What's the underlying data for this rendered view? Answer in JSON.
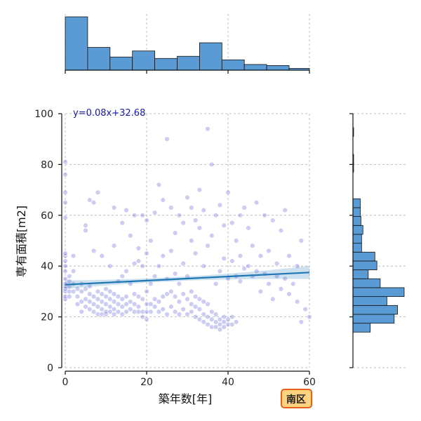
{
  "chart_data": {
    "type": "scatter",
    "xlabel": "築年数[年]",
    "ylabel": "専有面積[m2]",
    "xlim": [
      0,
      60
    ],
    "ylim": [
      0,
      100
    ],
    "xticks": [
      0,
      20,
      40,
      60
    ],
    "yticks": [
      0,
      20,
      40,
      60,
      80,
      100
    ],
    "grid": true,
    "regression": {
      "label": "y=0.08x+32.68",
      "slope": 0.08,
      "intercept": 32.68,
      "color": "#1f77b4"
    },
    "badge": {
      "label": "南区",
      "fill": "#ffd27f",
      "border": "#e8611a"
    },
    "point_color": "#5b5bd6",
    "hist_color": "#5b9bd5",
    "x_hist": {
      "bins": [
        0,
        5.5,
        11,
        16.5,
        22,
        27.5,
        33,
        38.5,
        44,
        49.5,
        55,
        60
      ],
      "counts": [
        150,
        64,
        37,
        54,
        33,
        39,
        77,
        29,
        16,
        13,
        5
      ]
    },
    "y_hist": {
      "bins": [
        14,
        17.5,
        21,
        24.5,
        28,
        31.5,
        35,
        38.5,
        42,
        45.5,
        49,
        52.5,
        56,
        59.5,
        63,
        66.5,
        70,
        73.5,
        77,
        80.5,
        84,
        87.5,
        91,
        94.5
      ],
      "counts": [
        26,
        62,
        67,
        51,
        77,
        41,
        23,
        36,
        33,
        13,
        13,
        15,
        12,
        11,
        11,
        0,
        0,
        0,
        1,
        1,
        0,
        0,
        1
      ]
    },
    "points": [
      [
        0,
        27
      ],
      [
        0,
        28
      ],
      [
        0,
        30
      ],
      [
        0,
        31
      ],
      [
        0,
        32
      ],
      [
        0,
        33
      ],
      [
        0,
        35
      ],
      [
        0,
        38
      ],
      [
        0,
        40
      ],
      [
        0,
        42
      ],
      [
        0,
        44
      ],
      [
        0,
        45
      ],
      [
        0,
        65
      ],
      [
        0,
        76
      ],
      [
        0,
        81
      ],
      [
        0,
        69
      ],
      [
        0,
        59
      ],
      [
        1,
        28
      ],
      [
        1,
        30
      ],
      [
        1,
        32
      ],
      [
        1,
        34
      ],
      [
        1,
        36
      ],
      [
        2,
        30
      ],
      [
        2,
        33
      ],
      [
        2,
        38
      ],
      [
        2,
        44
      ],
      [
        3,
        25
      ],
      [
        3,
        28
      ],
      [
        3,
        31
      ],
      [
        4,
        22
      ],
      [
        4,
        26
      ],
      [
        4,
        30
      ],
      [
        4,
        33
      ],
      [
        5,
        24
      ],
      [
        5,
        27
      ],
      [
        5,
        31
      ],
      [
        5,
        56
      ],
      [
        5,
        54
      ],
      [
        6,
        23
      ],
      [
        6,
        26
      ],
      [
        6,
        29
      ],
      [
        6,
        32
      ],
      [
        6,
        66
      ],
      [
        7,
        22
      ],
      [
        7,
        25
      ],
      [
        7,
        28
      ],
      [
        7,
        46
      ],
      [
        7,
        65
      ],
      [
        8,
        21
      ],
      [
        8,
        24
      ],
      [
        8,
        27
      ],
      [
        8,
        30
      ],
      [
        8,
        69
      ],
      [
        9,
        21
      ],
      [
        9,
        23
      ],
      [
        9,
        26
      ],
      [
        9,
        29
      ],
      [
        9,
        44
      ],
      [
        10,
        21
      ],
      [
        10,
        22
      ],
      [
        10,
        25
      ],
      [
        10,
        28
      ],
      [
        10,
        31
      ],
      [
        11,
        22
      ],
      [
        11,
        24
      ],
      [
        11,
        27
      ],
      [
        11,
        30
      ],
      [
        11,
        40
      ],
      [
        12,
        21
      ],
      [
        12,
        23
      ],
      [
        12,
        26
      ],
      [
        12,
        29
      ],
      [
        12,
        48
      ],
      [
        12,
        63
      ],
      [
        13,
        22
      ],
      [
        13,
        25
      ],
      [
        13,
        28
      ],
      [
        13,
        34
      ],
      [
        14,
        21
      ],
      [
        14,
        24
      ],
      [
        14,
        27
      ],
      [
        14,
        36
      ],
      [
        14,
        57
      ],
      [
        15,
        22
      ],
      [
        15,
        25
      ],
      [
        15,
        28
      ],
      [
        15,
        38
      ],
      [
        15,
        62
      ],
      [
        16,
        23
      ],
      [
        16,
        26
      ],
      [
        16,
        33
      ],
      [
        16,
        52
      ],
      [
        17,
        22
      ],
      [
        17,
        25
      ],
      [
        17,
        29
      ],
      [
        17,
        41
      ],
      [
        17,
        60
      ],
      [
        18,
        22
      ],
      [
        18,
        24
      ],
      [
        18,
        28
      ],
      [
        18,
        42
      ],
      [
        18,
        47
      ],
      [
        19,
        20
      ],
      [
        19,
        22
      ],
      [
        19,
        27
      ],
      [
        19,
        40
      ],
      [
        19,
        60
      ],
      [
        20,
        19
      ],
      [
        20,
        22
      ],
      [
        20,
        25
      ],
      [
        20,
        30
      ],
      [
        20,
        45
      ],
      [
        20,
        58
      ],
      [
        21,
        22
      ],
      [
        21,
        25
      ],
      [
        21,
        33
      ],
      [
        21,
        50
      ],
      [
        22,
        24
      ],
      [
        22,
        27
      ],
      [
        22,
        36
      ],
      [
        22,
        61
      ],
      [
        23,
        22
      ],
      [
        23,
        26
      ],
      [
        23,
        40
      ],
      [
        23,
        72
      ],
      [
        24,
        23
      ],
      [
        24,
        28
      ],
      [
        24,
        44
      ],
      [
        24,
        66
      ],
      [
        25,
        21
      ],
      [
        25,
        29
      ],
      [
        25,
        35
      ],
      [
        25,
        90
      ],
      [
        26,
        24
      ],
      [
        26,
        30
      ],
      [
        26,
        46
      ],
      [
        26,
        63
      ],
      [
        27,
        22
      ],
      [
        27,
        28
      ],
      [
        27,
        37
      ],
      [
        27,
        53
      ],
      [
        28,
        21
      ],
      [
        28,
        26
      ],
      [
        28,
        33
      ],
      [
        28,
        60
      ],
      [
        29,
        23
      ],
      [
        29,
        29
      ],
      [
        29,
        41
      ],
      [
        29,
        57
      ],
      [
        30,
        21
      ],
      [
        30,
        27
      ],
      [
        30,
        36
      ],
      [
        30,
        67
      ],
      [
        31,
        22
      ],
      [
        31,
        25
      ],
      [
        31,
        30
      ],
      [
        31,
        50
      ],
      [
        31,
        63
      ],
      [
        32,
        20
      ],
      [
        32,
        24
      ],
      [
        32,
        28
      ],
      [
        32,
        45
      ],
      [
        32,
        58
      ],
      [
        33,
        19
      ],
      [
        33,
        23
      ],
      [
        33,
        27
      ],
      [
        33,
        55
      ],
      [
        33,
        70
      ],
      [
        34,
        18
      ],
      [
        34,
        21
      ],
      [
        34,
        26
      ],
      [
        34,
        40
      ],
      [
        34,
        62
      ],
      [
        35,
        17
      ],
      [
        35,
        20
      ],
      [
        35,
        25
      ],
      [
        35,
        48
      ],
      [
        35,
        94
      ],
      [
        36,
        16
      ],
      [
        36,
        19
      ],
      [
        36,
        22
      ],
      [
        36,
        52
      ],
      [
        36,
        80
      ],
      [
        37,
        16
      ],
      [
        37,
        18
      ],
      [
        37,
        21
      ],
      [
        37,
        33
      ],
      [
        37,
        60
      ],
      [
        38,
        15
      ],
      [
        38,
        17
      ],
      [
        38,
        19
      ],
      [
        38,
        38
      ],
      [
        38,
        64
      ],
      [
        39,
        16
      ],
      [
        39,
        18
      ],
      [
        39,
        20
      ],
      [
        39,
        43
      ],
      [
        39,
        56
      ],
      [
        40,
        17
      ],
      [
        40,
        19
      ],
      [
        40,
        35
      ],
      [
        40,
        69
      ],
      [
        41,
        17
      ],
      [
        41,
        20
      ],
      [
        41,
        42
      ],
      [
        41,
        57
      ],
      [
        42,
        18
      ],
      [
        42,
        36
      ],
      [
        42,
        50
      ],
      [
        43,
        34
      ],
      [
        43,
        60
      ],
      [
        43,
        44
      ],
      [
        44,
        39
      ],
      [
        44,
        63
      ],
      [
        45,
        40
      ],
      [
        45,
        55
      ],
      [
        46,
        36
      ],
      [
        46,
        48
      ],
      [
        47,
        38
      ],
      [
        47,
        65
      ],
      [
        48,
        30
      ],
      [
        48,
        44
      ],
      [
        49,
        37
      ],
      [
        49,
        60
      ],
      [
        50,
        33
      ],
      [
        50,
        46
      ],
      [
        51,
        27
      ],
      [
        51,
        58
      ],
      [
        52,
        36
      ],
      [
        52,
        41
      ],
      [
        53,
        31
      ],
      [
        53,
        54
      ],
      [
        54,
        35
      ],
      [
        54,
        62
      ],
      [
        55,
        29
      ],
      [
        55,
        44
      ],
      [
        56,
        33
      ],
      [
        57,
        26
      ],
      [
        57,
        40
      ],
      [
        58,
        18
      ],
      [
        58,
        50
      ],
      [
        59,
        23
      ],
      [
        60,
        20
      ]
    ]
  }
}
